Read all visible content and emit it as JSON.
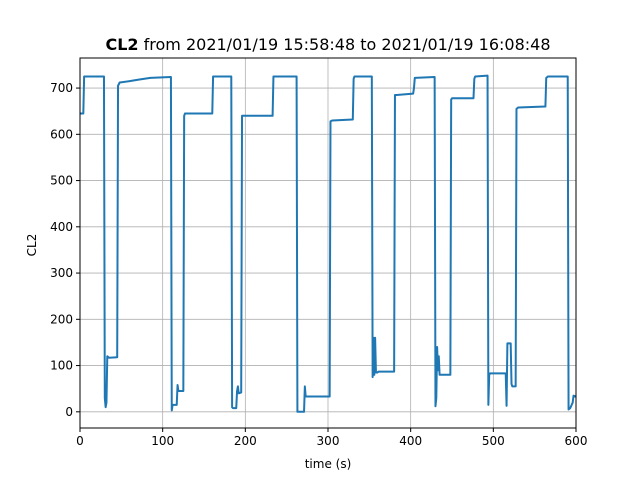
{
  "chart_data": {
    "type": "line",
    "title_bold": "CL2",
    "title_rest": " from 2021/01/19 15:58:48 to 2021/01/19 16:08:48",
    "xlabel": "time (s)",
    "ylabel": "CL2",
    "xlim": [
      0,
      600
    ],
    "ylim": [
      -35,
      765
    ],
    "xticks": [
      0,
      100,
      200,
      300,
      400,
      500,
      600
    ],
    "yticks": [
      0,
      100,
      200,
      300,
      400,
      500,
      600,
      700
    ],
    "grid": true,
    "legend": "none",
    "series": [
      {
        "color": "#1f77b4",
        "points": [
          [
            0,
            645
          ],
          [
            4,
            645
          ],
          [
            5,
            725
          ],
          [
            29,
            725
          ],
          [
            30,
            30
          ],
          [
            31,
            10
          ],
          [
            32,
            20
          ],
          [
            33,
            120
          ],
          [
            35,
            117
          ],
          [
            45,
            118
          ],
          [
            46,
            705
          ],
          [
            48,
            712
          ],
          [
            60,
            715
          ],
          [
            70,
            718
          ],
          [
            85,
            722
          ],
          [
            110,
            724
          ],
          [
            111,
            3
          ],
          [
            112,
            15
          ],
          [
            117,
            15
          ],
          [
            118,
            58
          ],
          [
            119,
            45
          ],
          [
            125,
            45
          ],
          [
            126,
            640
          ],
          [
            127,
            645
          ],
          [
            160,
            645
          ],
          [
            161,
            725
          ],
          [
            183,
            725
          ],
          [
            184,
            10
          ],
          [
            185,
            8
          ],
          [
            189,
            8
          ],
          [
            190,
            45
          ],
          [
            191,
            55
          ],
          [
            192,
            40
          ],
          [
            195,
            42
          ],
          [
            196,
            640
          ],
          [
            197,
            640
          ],
          [
            233,
            640
          ],
          [
            234,
            725
          ],
          [
            262,
            725
          ],
          [
            263,
            0
          ],
          [
            271,
            0
          ],
          [
            272,
            55
          ],
          [
            273,
            33
          ],
          [
            302,
            33
          ],
          [
            303,
            628
          ],
          [
            305,
            630
          ],
          [
            330,
            632
          ],
          [
            331,
            720
          ],
          [
            332,
            725
          ],
          [
            353,
            725
          ],
          [
            354,
            75
          ],
          [
            355,
            160
          ],
          [
            356,
            80
          ],
          [
            357,
            160
          ],
          [
            358,
            85
          ],
          [
            360,
            85
          ],
          [
            361,
            87
          ],
          [
            380,
            87
          ],
          [
            381,
            685
          ],
          [
            383,
            685
          ],
          [
            403,
            688
          ],
          [
            404,
            700
          ],
          [
            405,
            722
          ],
          [
            429,
            724
          ],
          [
            430,
            12
          ],
          [
            431,
            30
          ],
          [
            432,
            140
          ],
          [
            433,
            90
          ],
          [
            434,
            120
          ],
          [
            435,
            80
          ],
          [
            437,
            80
          ],
          [
            448,
            80
          ],
          [
            449,
            675
          ],
          [
            450,
            678
          ],
          [
            476,
            678
          ],
          [
            477,
            720
          ],
          [
            478,
            725
          ],
          [
            493,
            727
          ],
          [
            494,
            15
          ],
          [
            495,
            80
          ],
          [
            496,
            83
          ],
          [
            515,
            83
          ],
          [
            516,
            13
          ],
          [
            517,
            148
          ],
          [
            518,
            148
          ],
          [
            521,
            148
          ],
          [
            522,
            60
          ],
          [
            523,
            55
          ],
          [
            527,
            55
          ],
          [
            528,
            655
          ],
          [
            530,
            658
          ],
          [
            563,
            660
          ],
          [
            564,
            722
          ],
          [
            566,
            725
          ],
          [
            590,
            725
          ],
          [
            591,
            5
          ],
          [
            593,
            8
          ],
          [
            596,
            20
          ],
          [
            597,
            35
          ],
          [
            600,
            33
          ]
        ]
      }
    ]
  }
}
